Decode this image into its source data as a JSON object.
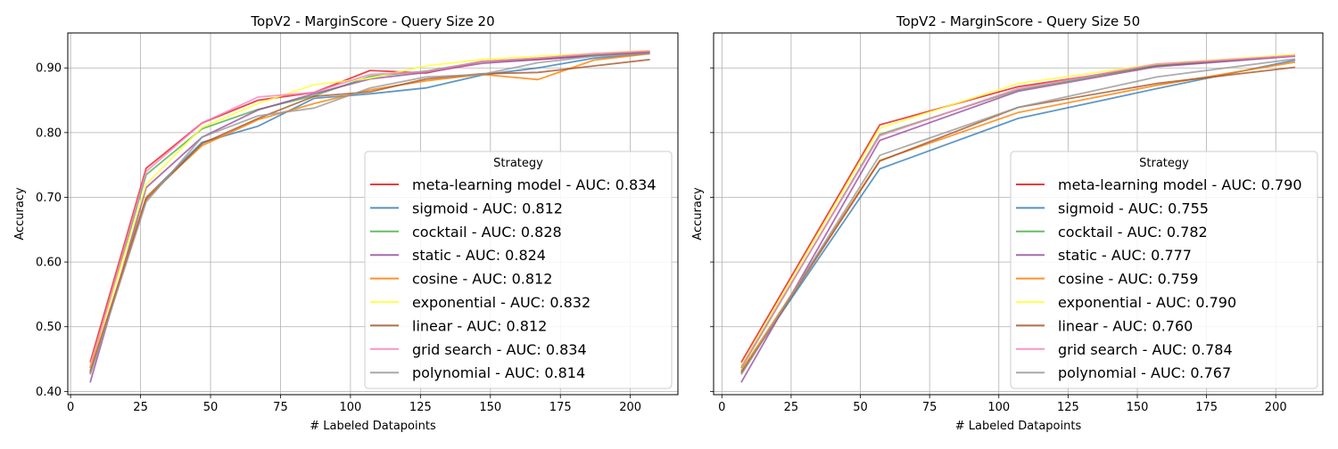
{
  "chart_data": [
    {
      "type": "line",
      "title": "TopV2 - MarginScore - Query Size 20",
      "xlabel": "# Labeled Datapoints",
      "ylabel": "Accuracy",
      "xlim": [
        -1,
        217
      ],
      "ylim": [
        0.395,
        0.954
      ],
      "xticks": [
        0,
        25,
        50,
        75,
        100,
        125,
        150,
        175,
        200
      ],
      "yticks": [
        0.4,
        0.5,
        0.6,
        0.7,
        0.8,
        0.9
      ],
      "ytick_labels": [
        "0.40",
        "0.50",
        "0.60",
        "0.70",
        "0.80",
        "0.90"
      ],
      "grid": true,
      "legend": {
        "title": "Strategy",
        "placement": "lower-right"
      },
      "series": [
        {
          "name": "meta-learning model - AUC: 0.834",
          "color": "#e41a1c",
          "x": [
            7,
            27,
            47,
            67,
            87,
            107,
            127,
            147,
            167,
            187,
            207
          ],
          "y": [
            0.445,
            0.745,
            0.815,
            0.85,
            0.862,
            0.896,
            0.892,
            0.91,
            0.913,
            0.919,
            0.924
          ]
        },
        {
          "name": "sigmoid - AUC: 0.812",
          "color": "#377eb8",
          "x": [
            7,
            27,
            47,
            67,
            87,
            107,
            127,
            147,
            167,
            187,
            207
          ],
          "y": [
            0.43,
            0.7,
            0.785,
            0.81,
            0.853,
            0.86,
            0.869,
            0.889,
            0.9,
            0.915,
            0.922
          ]
        },
        {
          "name": "cocktail - AUC: 0.828",
          "color": "#4daf4a",
          "x": [
            7,
            27,
            47,
            67,
            87,
            107,
            127,
            147,
            167,
            187,
            207
          ],
          "y": [
            0.436,
            0.735,
            0.806,
            0.836,
            0.857,
            0.887,
            0.895,
            0.91,
            0.915,
            0.92,
            0.925
          ]
        },
        {
          "name": "static - AUC: 0.824",
          "color": "#984ea3",
          "x": [
            7,
            27,
            47,
            67,
            87,
            107,
            127,
            147,
            167,
            187,
            207
          ],
          "y": [
            0.414,
            0.715,
            0.793,
            0.835,
            0.86,
            0.883,
            0.893,
            0.907,
            0.913,
            0.919,
            0.924
          ]
        },
        {
          "name": "cosine - AUC: 0.812",
          "color": "#ff7f00",
          "x": [
            7,
            27,
            47,
            67,
            87,
            107,
            127,
            147,
            167,
            187,
            207
          ],
          "y": [
            0.432,
            0.7,
            0.78,
            0.82,
            0.845,
            0.866,
            0.88,
            0.89,
            0.882,
            0.912,
            0.922
          ]
        },
        {
          "name": "exponential - AUC: 0.832",
          "color": "#ffff33",
          "x": [
            7,
            27,
            47,
            67,
            87,
            107,
            127,
            147,
            167,
            187,
            207
          ],
          "y": [
            0.44,
            0.72,
            0.808,
            0.845,
            0.874,
            0.884,
            0.903,
            0.913,
            0.918,
            0.922,
            0.927
          ]
        },
        {
          "name": "linear - AUC: 0.812",
          "color": "#a65628",
          "x": [
            7,
            27,
            47,
            67,
            87,
            107,
            127,
            147,
            167,
            187,
            207
          ],
          "y": [
            0.428,
            0.697,
            0.783,
            0.822,
            0.856,
            0.863,
            0.883,
            0.891,
            0.893,
            0.903,
            0.913
          ]
        },
        {
          "name": "grid search - AUC: 0.834",
          "color": "#f781bf",
          "x": [
            7,
            27,
            47,
            67,
            87,
            107,
            127,
            147,
            167,
            187,
            207
          ],
          "y": [
            0.438,
            0.74,
            0.815,
            0.855,
            0.862,
            0.89,
            0.894,
            0.91,
            0.915,
            0.922,
            0.926
          ]
        },
        {
          "name": "polynomial - AUC: 0.814",
          "color": "#999999",
          "x": [
            7,
            27,
            47,
            67,
            87,
            107,
            127,
            147,
            167,
            187,
            207
          ],
          "y": [
            0.426,
            0.693,
            0.793,
            0.826,
            0.838,
            0.869,
            0.886,
            0.89,
            0.908,
            0.918,
            0.922
          ]
        }
      ]
    },
    {
      "type": "line",
      "title": "TopV2 - MarginScore - Query Size 50",
      "xlabel": "# Labeled Datapoints",
      "ylabel": "Accuracy",
      "xlim": [
        -3,
        217
      ],
      "ylim": [
        0.395,
        0.954
      ],
      "xticks": [
        0,
        25,
        50,
        75,
        100,
        125,
        150,
        175,
        200
      ],
      "yticks": [
        0.4,
        0.5,
        0.6,
        0.7,
        0.8,
        0.9
      ],
      "grid": true,
      "legend": {
        "title": "Strategy",
        "placement": "lower-right"
      },
      "series": [
        {
          "name": "meta-learning model - AUC: 0.790",
          "color": "#e41a1c",
          "x": [
            7,
            57,
            107,
            157,
            207
          ],
          "y": [
            0.445,
            0.812,
            0.871,
            0.903,
            0.919
          ]
        },
        {
          "name": "sigmoid - AUC: 0.755",
          "color": "#377eb8",
          "x": [
            7,
            57,
            107,
            157,
            207
          ],
          "y": [
            0.43,
            0.744,
            0.822,
            0.868,
            0.912
          ]
        },
        {
          "name": "cocktail - AUC: 0.782",
          "color": "#4daf4a",
          "x": [
            7,
            57,
            107,
            157,
            207
          ],
          "y": [
            0.436,
            0.797,
            0.866,
            0.904,
            0.919
          ]
        },
        {
          "name": "static - AUC: 0.777",
          "color": "#984ea3",
          "x": [
            7,
            57,
            107,
            157,
            207
          ],
          "y": [
            0.414,
            0.788,
            0.864,
            0.902,
            0.918
          ]
        },
        {
          "name": "cosine - AUC: 0.759",
          "color": "#ff7f00",
          "x": [
            7,
            57,
            107,
            157,
            207
          ],
          "y": [
            0.432,
            0.757,
            0.831,
            0.873,
            0.909
          ]
        },
        {
          "name": "exponential - AUC: 0.790",
          "color": "#ffff33",
          "x": [
            7,
            57,
            107,
            157,
            207
          ],
          "y": [
            0.44,
            0.807,
            0.876,
            0.906,
            0.921
          ]
        },
        {
          "name": "linear - AUC: 0.760",
          "color": "#a65628",
          "x": [
            7,
            57,
            107,
            157,
            207
          ],
          "y": [
            0.428,
            0.756,
            0.839,
            0.876,
            0.901
          ]
        },
        {
          "name": "grid search - AUC: 0.784",
          "color": "#f781bf",
          "x": [
            7,
            57,
            107,
            157,
            207
          ],
          "y": [
            0.438,
            0.795,
            0.868,
            0.906,
            0.919
          ]
        },
        {
          "name": "polynomial - AUC: 0.767",
          "color": "#999999",
          "x": [
            7,
            57,
            107,
            157,
            207
          ],
          "y": [
            0.426,
            0.765,
            0.839,
            0.886,
            0.914
          ]
        }
      ]
    }
  ]
}
